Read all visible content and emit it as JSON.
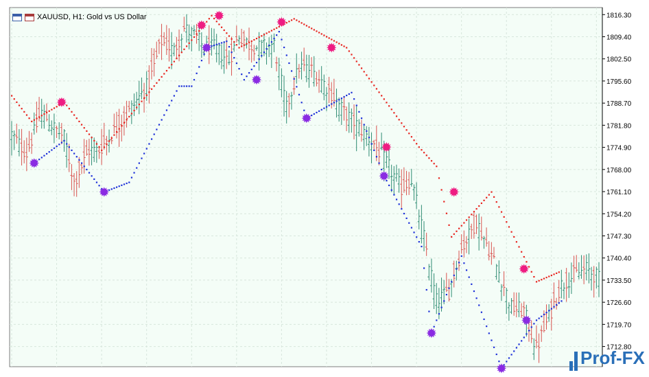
{
  "window": {
    "symbol_title": "XAUUSD, H1:  Gold vs US Dollar",
    "icon_names": [
      "chart-window-icon",
      "chart-window-alt-icon"
    ]
  },
  "watermark": {
    "text": "Prof-FX",
    "color": "#2a6fb8"
  },
  "colors": {
    "background": "#f4fdf7",
    "grid": "#d7e6dc",
    "bull_bar": "#2e8b72",
    "bear_bar": "#d9534f",
    "sar_red": "#e8231e",
    "sar_blue": "#1c2fd8",
    "signal_sell": "#ee1c82",
    "signal_buy": "#8a2be2",
    "axis": "#000000"
  },
  "chart_data": {
    "type": "candlestick",
    "symbol": "XAUUSD",
    "timeframe": "H1",
    "ylim": [
      1706.5,
      1818.5
    ],
    "yticks": [
      "1816.30",
      "1809.40",
      "1802.50",
      "1795.60",
      "1788.70",
      "1781.80",
      "1774.90",
      "1768.00",
      "1761.10",
      "1754.20",
      "1747.30",
      "1740.40",
      "1733.50",
      "1726.60",
      "1719.70",
      "1712.80"
    ],
    "grid": true,
    "anchors": [
      [
        0,
        1779
      ],
      [
        6,
        1773
      ],
      [
        12,
        1786
      ],
      [
        17,
        1781
      ],
      [
        21,
        1778
      ],
      [
        25,
        1764
      ],
      [
        31,
        1774
      ],
      [
        35,
        1774
      ],
      [
        42,
        1781
      ],
      [
        47,
        1786
      ],
      [
        55,
        1795
      ],
      [
        60,
        1808
      ],
      [
        65,
        1805
      ],
      [
        69,
        1812
      ],
      [
        73,
        1810
      ],
      [
        77,
        1806
      ],
      [
        81,
        1806
      ],
      [
        87,
        1802
      ],
      [
        91,
        1810
      ],
      [
        95,
        1807
      ],
      [
        99,
        1806
      ],
      [
        105,
        1807
      ],
      [
        110,
        1787
      ],
      [
        115,
        1800
      ],
      [
        120,
        1799
      ],
      [
        125,
        1795
      ],
      [
        133,
        1786
      ],
      [
        138,
        1782
      ],
      [
        145,
        1776
      ],
      [
        150,
        1770
      ],
      [
        156,
        1762
      ],
      [
        160,
        1765
      ],
      [
        165,
        1747
      ],
      [
        170,
        1727
      ],
      [
        175,
        1730
      ],
      [
        180,
        1743
      ],
      [
        186,
        1752
      ],
      [
        190,
        1745
      ],
      [
        195,
        1736
      ],
      [
        200,
        1725
      ],
      [
        205,
        1724
      ],
      [
        210,
        1712
      ],
      [
        215,
        1722
      ],
      [
        220,
        1732
      ],
      [
        225,
        1735
      ],
      [
        230,
        1737
      ],
      [
        235,
        1734
      ]
    ],
    "sar_red": [
      [
        0,
        1791
      ],
      [
        8,
        1783
      ],
      [
        21,
        1789
      ],
      [
        36,
        1774
      ],
      [
        80,
        1816
      ],
      [
        91,
        1806
      ],
      [
        113,
        1815
      ],
      [
        134,
        1806
      ],
      [
        163,
        1775
      ],
      [
        170,
        1769
      ],
      [
        176,
        1747
      ],
      [
        192,
        1761
      ],
      [
        210,
        1733
      ],
      [
        219,
        1736
      ]
    ],
    "sar_blue": [
      [
        9,
        1770
      ],
      [
        21,
        1777
      ],
      [
        37,
        1761
      ],
      [
        47,
        1764
      ],
      [
        67,
        1794
      ],
      [
        72,
        1794
      ],
      [
        78,
        1806
      ],
      [
        86,
        1808
      ],
      [
        93,
        1796
      ],
      [
        107,
        1811
      ],
      [
        118,
        1784
      ],
      [
        136,
        1792
      ],
      [
        149,
        1766
      ],
      [
        164,
        1744
      ],
      [
        168,
        1717
      ],
      [
        180,
        1741
      ],
      [
        196,
        1706
      ],
      [
        210,
        1721
      ],
      [
        220,
        1727
      ]
    ],
    "buy_signals": [
      [
        9,
        1770
      ],
      [
        37,
        1761
      ],
      [
        78,
        1806
      ],
      [
        98,
        1796
      ],
      [
        118,
        1784
      ],
      [
        149,
        1766
      ],
      [
        168,
        1717
      ],
      [
        196,
        1706
      ],
      [
        206,
        1721
      ]
    ],
    "sell_signals": [
      [
        20,
        1789
      ],
      [
        76,
        1813
      ],
      [
        83,
        1816
      ],
      [
        108,
        1814
      ],
      [
        128,
        1806
      ],
      [
        150,
        1775
      ],
      [
        177,
        1761
      ],
      [
        205,
        1737
      ]
    ]
  }
}
